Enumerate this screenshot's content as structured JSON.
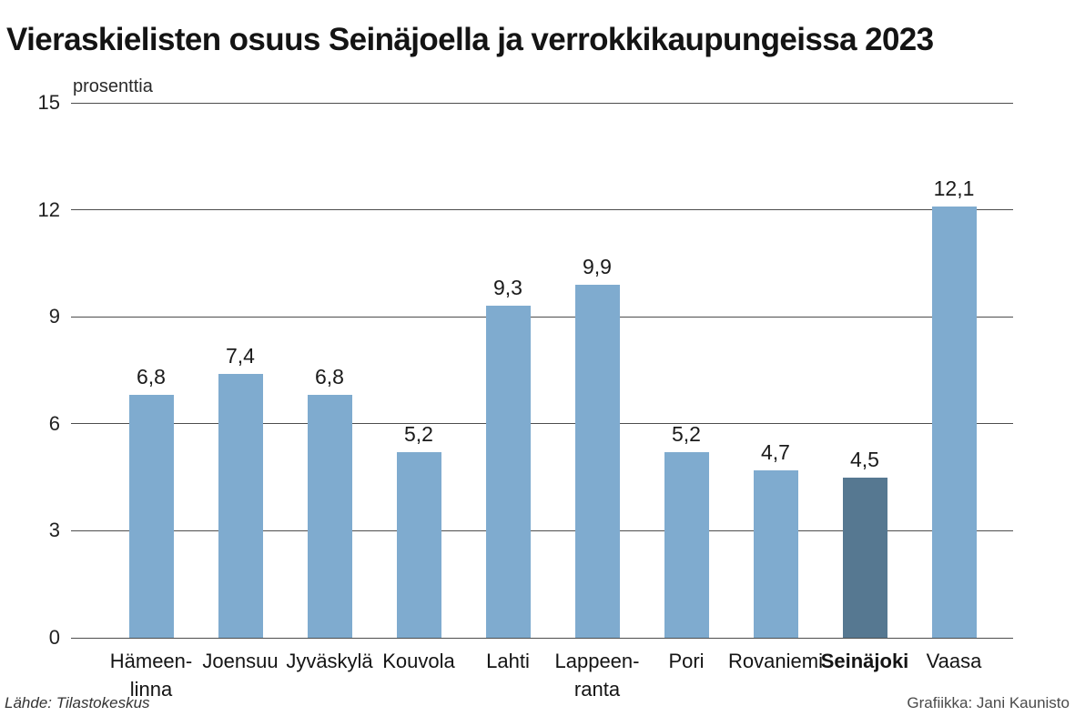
{
  "title": "Vieraskielisten osuus Seinäjoella ja verrokkikaupungeissa 2023",
  "chart_data": {
    "type": "bar",
    "title": "Vieraskielisten osuus Seinäjoella ja verrokkikaupungeissa 2023",
    "ylabel": "prosenttia",
    "xlabel": "",
    "categories": [
      "Hämeen-\nlinna",
      "Joensuu",
      "Jyväskylä",
      "Kouvola",
      "Lahti",
      "Lappeen-\nranta",
      "Pori",
      "Rovaniemi",
      "Seinäjoki",
      "Vaasa"
    ],
    "values": [
      6.8,
      7.4,
      6.8,
      5.2,
      9.3,
      9.9,
      5.2,
      4.7,
      4.5,
      12.1
    ],
    "value_labels": [
      "6,8",
      "7,4",
      "6,8",
      "5,2",
      "9,3",
      "9,9",
      "5,2",
      "4,7",
      "4,5",
      "12,1"
    ],
    "highlight_index": 8,
    "highlight_category": "Seinäjoki",
    "ylim": [
      0,
      15
    ],
    "yticks": [
      0,
      3,
      6,
      9,
      12,
      15
    ],
    "grid": true,
    "legend": "none",
    "bar_color": "#7fabcf",
    "highlight_color": "#567891",
    "gridline_color": "#4d4d4d"
  },
  "footer": {
    "source": "Lähde: Tilastokeskus",
    "credit": "Grafiikka: Jani Kaunisto"
  }
}
